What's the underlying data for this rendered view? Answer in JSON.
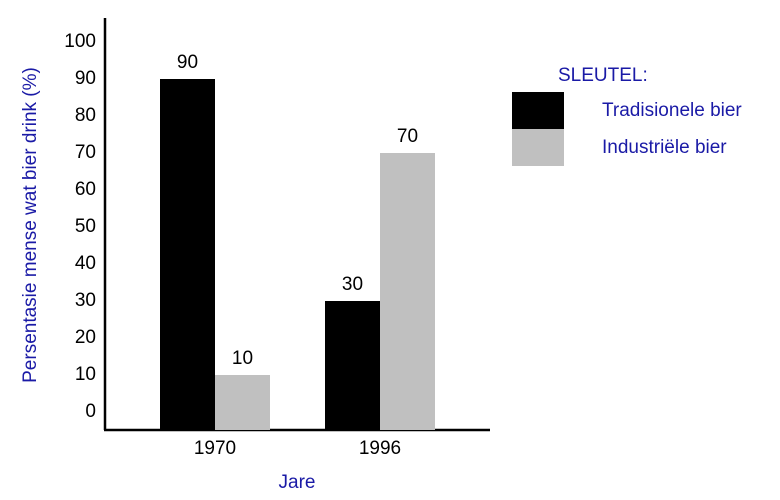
{
  "chart_data": {
    "type": "bar",
    "categories": [
      "1970",
      "1996"
    ],
    "series": [
      {
        "name": "Tradisionele bier",
        "values": [
          90,
          30
        ],
        "color": "#000000"
      },
      {
        "name": "Industriële bier",
        "values": [
          10,
          70
        ],
        "color": "#c0c0c0"
      }
    ],
    "data_labels": [
      [
        "90",
        "30"
      ],
      [
        "10",
        "70"
      ]
    ],
    "xlabel": "Jare",
    "ylabel": "Persentasie mense wat bier drink (%)",
    "ylim": [
      0,
      100
    ],
    "yticks": [
      "0",
      "10",
      "20",
      "30",
      "40",
      "50",
      "60",
      "70",
      "80",
      "90",
      "100"
    ],
    "legend_title": "SLEUTEL:",
    "legend_position": "right",
    "grid": false,
    "text_color": "#1a1aa6"
  }
}
